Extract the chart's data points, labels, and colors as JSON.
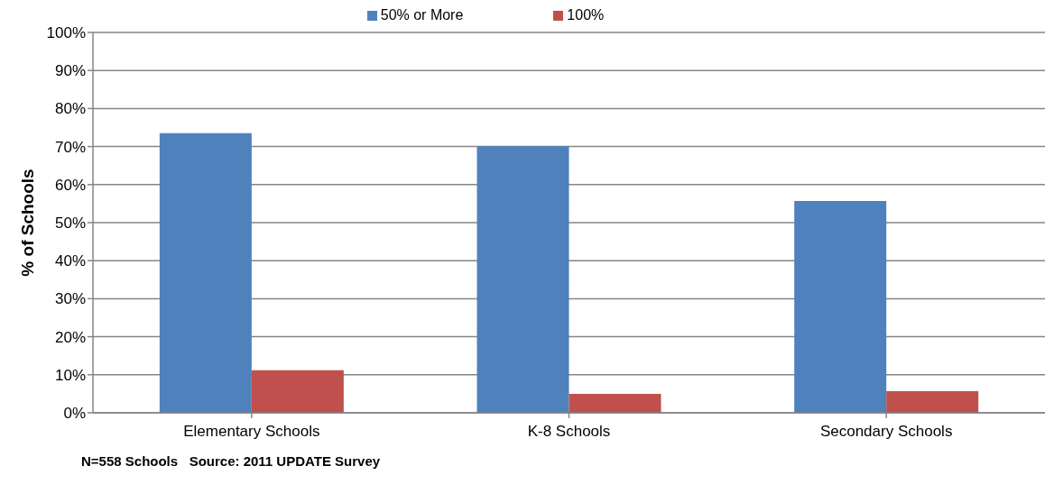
{
  "chart_data": {
    "type": "bar",
    "categories": [
      "Elementary Schools",
      "K-8 Schools",
      "Secondary Schools"
    ],
    "series": [
      {
        "name": "50% or More",
        "color": "#4f81bd",
        "values": [
          73.5,
          70.1,
          55.7
        ]
      },
      {
        "name": "100%",
        "color": "#c0504d",
        "values": [
          11.2,
          5.0,
          5.7
        ]
      }
    ],
    "ylabel": "% of Schools",
    "ylim": [
      0,
      100
    ],
    "yticks": [
      {
        "value": 0,
        "label": "0%"
      },
      {
        "value": 10,
        "label": "10%"
      },
      {
        "value": 20,
        "label": "20%"
      },
      {
        "value": 30,
        "label": "30%"
      },
      {
        "value": 40,
        "label": "40%"
      },
      {
        "value": 50,
        "label": "50%"
      },
      {
        "value": 60,
        "label": "60%"
      },
      {
        "value": 70,
        "label": "70%"
      },
      {
        "value": 80,
        "label": "80%"
      },
      {
        "value": 90,
        "label": "90%"
      },
      {
        "value": 100,
        "label": "100%"
      }
    ],
    "grid": "y",
    "legend": "top",
    "annotations": [
      "N=558 Schools   Source: 2011 UPDATE Survey"
    ]
  }
}
